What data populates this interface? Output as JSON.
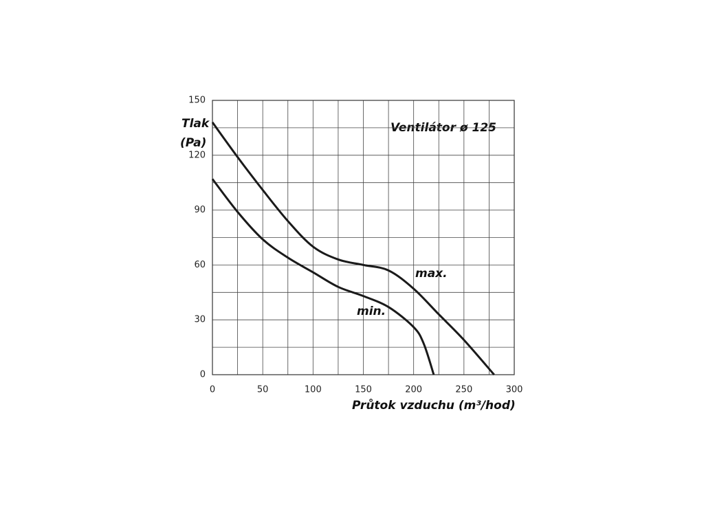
{
  "chart_data": {
    "type": "line",
    "title": "Ventilátor ø 125",
    "ylabel_lines": [
      "Tlak",
      "(Pa)"
    ],
    "xlabel": "Průtok vzduchu (m³/hod)",
    "xlim": [
      0,
      300
    ],
    "ylim": [
      0,
      150
    ],
    "xticks": [
      0,
      50,
      100,
      150,
      200,
      250,
      300
    ],
    "yticks": [
      0,
      30,
      60,
      90,
      120,
      150
    ],
    "xgrid": [
      0,
      25,
      50,
      75,
      100,
      125,
      150,
      175,
      200,
      225,
      250,
      275,
      300
    ],
    "ygrid": [
      0,
      15,
      30,
      45,
      60,
      75,
      90,
      105,
      120,
      135,
      150
    ],
    "series": [
      {
        "name": "max.",
        "color": "#1a1a1a",
        "x": [
          0,
          25,
          50,
          75,
          100,
          125,
          150,
          175,
          200,
          225,
          250,
          280
        ],
        "values": [
          138,
          119,
          101,
          84,
          70,
          63,
          60,
          57,
          47,
          33,
          19,
          0
        ]
      },
      {
        "name": "min.",
        "color": "#1a1a1a",
        "x": [
          0,
          25,
          50,
          75,
          100,
          125,
          150,
          175,
          200,
          210,
          220
        ],
        "values": [
          107,
          89,
          74,
          64,
          56,
          48,
          43,
          37,
          26,
          17,
          0
        ]
      }
    ]
  }
}
